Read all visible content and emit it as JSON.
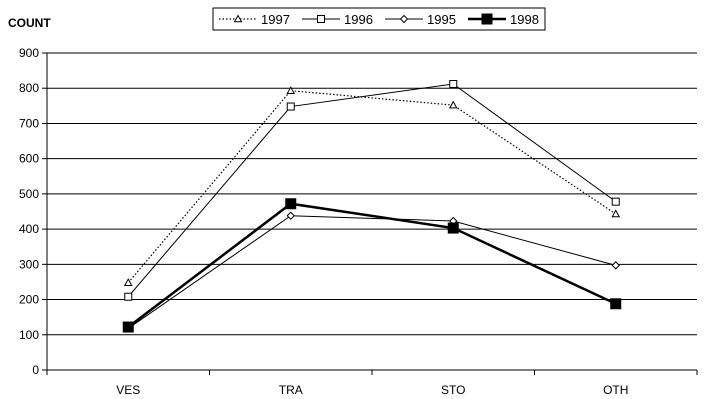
{
  "chart_data": {
    "type": "line",
    "title": "",
    "xlabel": "",
    "ylabel": "COUNT",
    "categories": [
      "VES",
      "TRA",
      "STO",
      "OTH"
    ],
    "ylim": [
      0,
      900
    ],
    "yticks": [
      0,
      100,
      200,
      300,
      400,
      500,
      600,
      700,
      800,
      900
    ],
    "grid": true,
    "legend_position": "top",
    "series": [
      {
        "name": "1997",
        "values": [
          248,
          793,
          752,
          443
        ],
        "style": "dotted",
        "marker": "triangle-open",
        "color": "#000000"
      },
      {
        "name": "1996",
        "values": [
          208,
          748,
          812,
          478
        ],
        "style": "solid-thin",
        "marker": "square-open",
        "color": "#000000"
      },
      {
        "name": "1995",
        "values": [
          118,
          438,
          423,
          297
        ],
        "style": "solid-thin",
        "marker": "diamond-open",
        "color": "#000000"
      },
      {
        "name": "1998",
        "values": [
          122,
          472,
          403,
          188
        ],
        "style": "solid-bold",
        "marker": "square-filled",
        "color": "#000000"
      }
    ]
  }
}
